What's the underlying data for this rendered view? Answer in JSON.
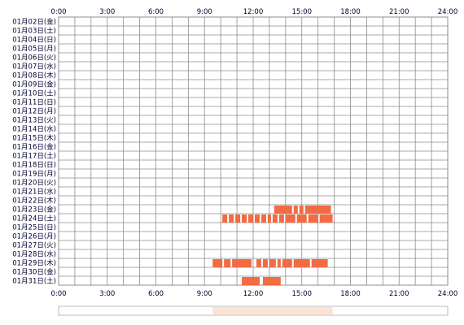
{
  "chart_data": {
    "type": "timeline",
    "title": "",
    "x_unit": "hour",
    "xlim": [
      0,
      24
    ],
    "x_ticks": [
      "0:00",
      "3:00",
      "6:00",
      "9:00",
      "12:00",
      "15:00",
      "18:00",
      "21:00",
      "24:00"
    ],
    "grid": true,
    "rows": [
      {
        "label": "01月02日(金)",
        "intervals": []
      },
      {
        "label": "01月03日(土)",
        "intervals": []
      },
      {
        "label": "01月04日(日)",
        "intervals": []
      },
      {
        "label": "01月05日(月)",
        "intervals": []
      },
      {
        "label": "01月06日(火)",
        "intervals": []
      },
      {
        "label": "01月07日(水)",
        "intervals": []
      },
      {
        "label": "01月08日(木)",
        "intervals": []
      },
      {
        "label": "01月09日(金)",
        "intervals": []
      },
      {
        "label": "01月10日(土)",
        "intervals": []
      },
      {
        "label": "01月11日(日)",
        "intervals": []
      },
      {
        "label": "01月12日(月)",
        "intervals": []
      },
      {
        "label": "01月13日(火)",
        "intervals": []
      },
      {
        "label": "01月14日(水)",
        "intervals": []
      },
      {
        "label": "01月15日(木)",
        "intervals": []
      },
      {
        "label": "01月16日(金)",
        "intervals": []
      },
      {
        "label": "01月17日(土)",
        "intervals": []
      },
      {
        "label": "01月18日(日)",
        "intervals": []
      },
      {
        "label": "01月19日(月)",
        "intervals": []
      },
      {
        "label": "01月20日(火)",
        "intervals": []
      },
      {
        "label": "01月21日(水)",
        "intervals": []
      },
      {
        "label": "01月22日(木)",
        "intervals": []
      },
      {
        "label": "01月23日(金)",
        "intervals": [
          [
            13.3,
            14.4
          ],
          [
            14.5,
            14.75
          ],
          [
            14.85,
            15.1
          ],
          [
            15.2,
            16.8
          ]
        ]
      },
      {
        "label": "01月24日(土)",
        "intervals": [
          [
            10.1,
            10.4
          ],
          [
            10.5,
            10.8
          ],
          [
            10.9,
            11.2
          ],
          [
            11.3,
            11.6
          ],
          [
            11.7,
            12.0
          ],
          [
            12.1,
            12.4
          ],
          [
            12.5,
            12.8
          ],
          [
            12.9,
            13.1
          ],
          [
            13.2,
            13.5
          ],
          [
            13.6,
            13.9
          ],
          [
            14.0,
            14.6
          ],
          [
            14.7,
            15.3
          ],
          [
            15.4,
            16.0
          ],
          [
            16.1,
            16.9
          ]
        ]
      },
      {
        "label": "01月25日(日)",
        "intervals": []
      },
      {
        "label": "01月26日(月)",
        "intervals": []
      },
      {
        "label": "01月27日(火)",
        "intervals": []
      },
      {
        "label": "01月28日(水)",
        "intervals": []
      },
      {
        "label": "01月29日(木)",
        "intervals": [
          [
            9.5,
            10.1
          ],
          [
            10.2,
            10.6
          ],
          [
            10.7,
            11.9
          ],
          [
            12.2,
            12.5
          ],
          [
            12.6,
            12.9
          ],
          [
            13.0,
            13.4
          ],
          [
            13.5,
            13.7
          ],
          [
            13.8,
            14.4
          ],
          [
            14.5,
            15.5
          ],
          [
            15.6,
            16.6
          ]
        ]
      },
      {
        "label": "01月30日(金)",
        "intervals": []
      },
      {
        "label": "01月31日(土)",
        "intervals": [
          [
            11.3,
            12.4
          ],
          [
            12.6,
            13.7
          ]
        ]
      }
    ],
    "summary_strip": {
      "intervals": [
        [
          9.5,
          16.9
        ]
      ]
    },
    "colors": {
      "bar": "#f26b43",
      "strip": "#fde1d3",
      "grid": "#8c8c8c",
      "text": "#000033"
    }
  }
}
